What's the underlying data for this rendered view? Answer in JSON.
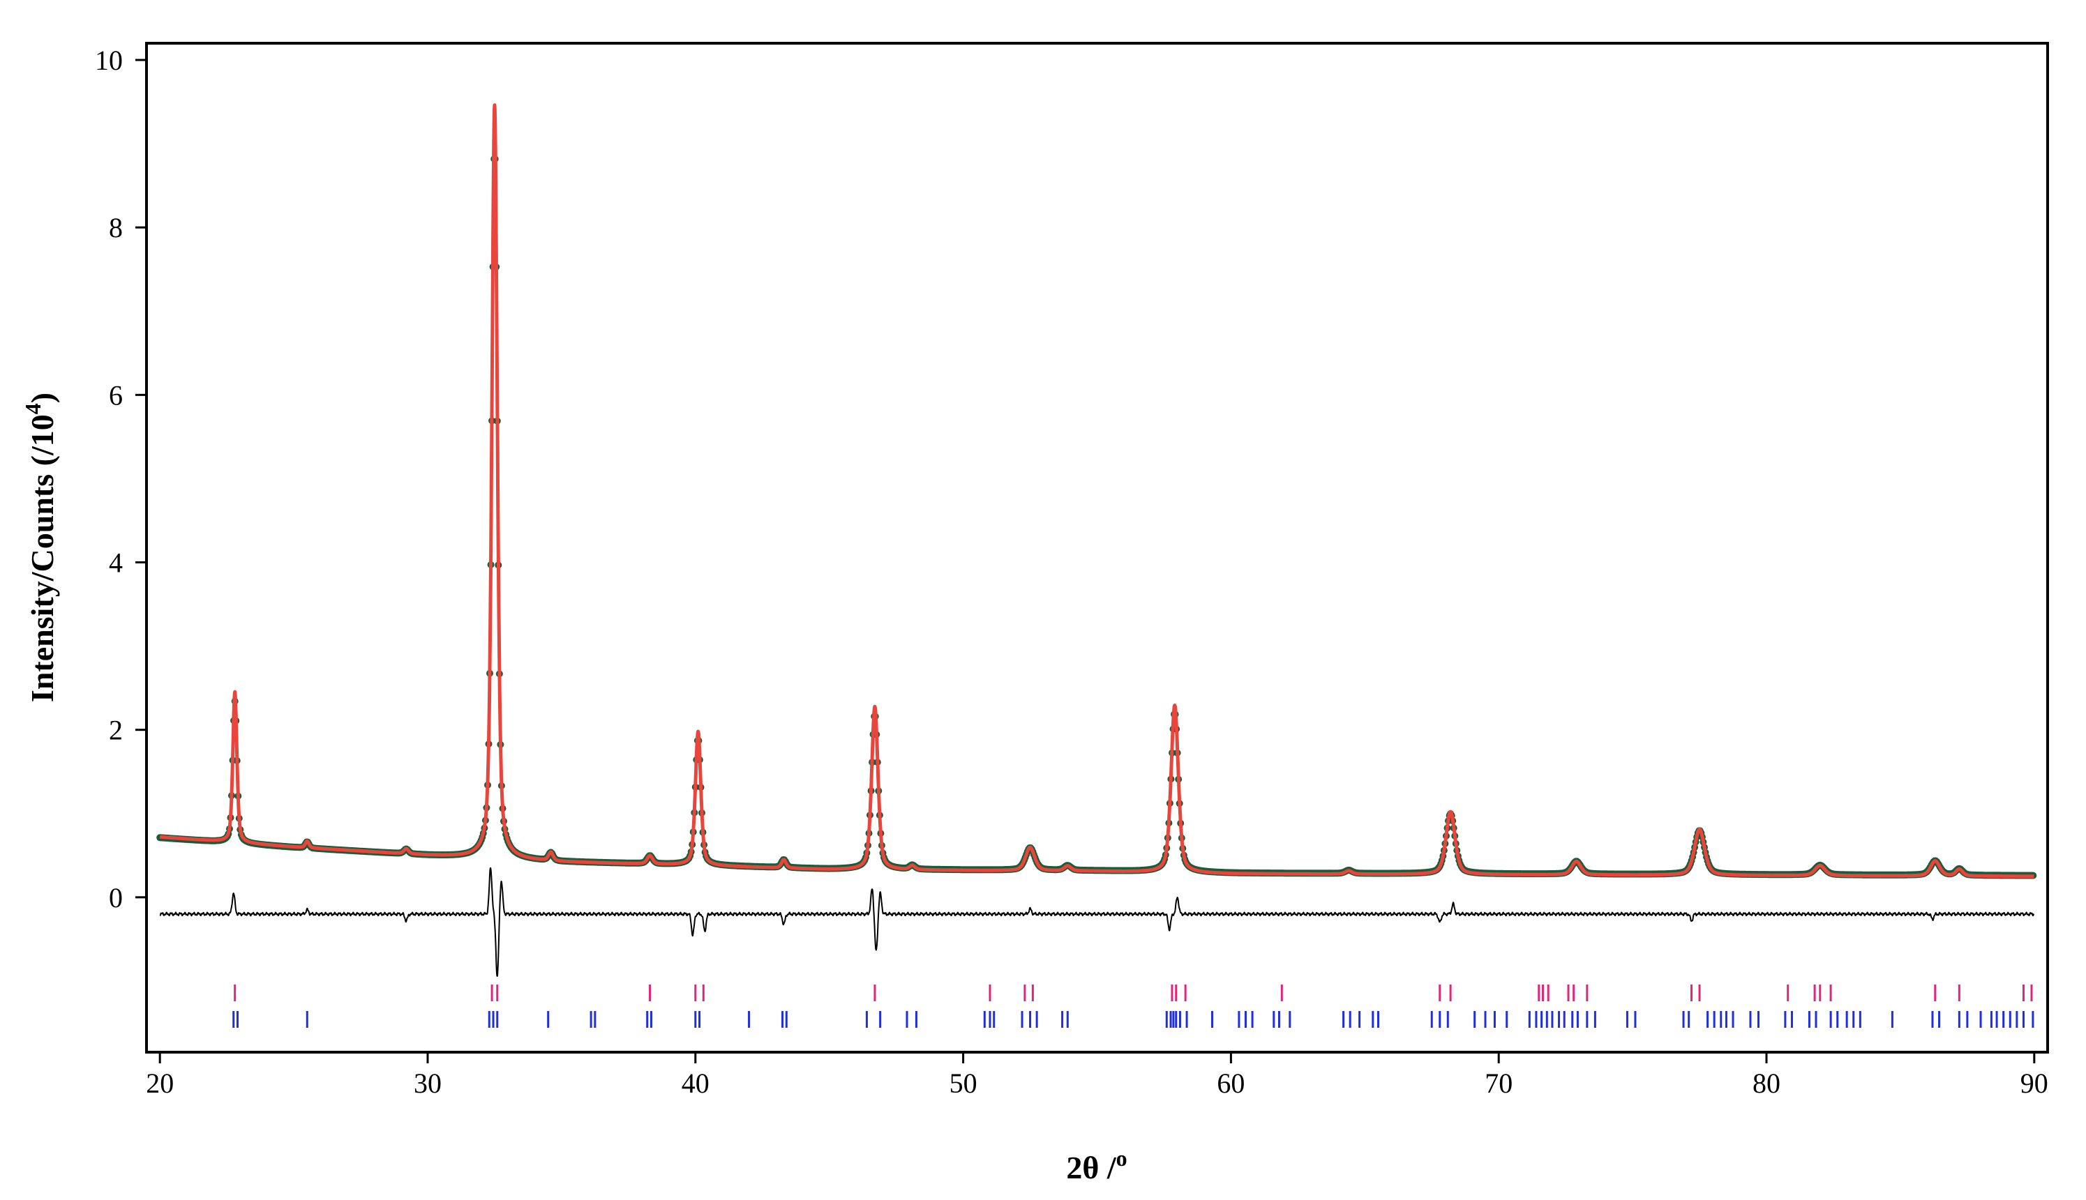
{
  "chart_data": {
    "type": "scatter",
    "title": "",
    "xlabel": "2θ /",
    "xlabel_sup": "o",
    "ylabel": "Intensity/Counts (/10",
    "ylabel_sup": "4",
    "ylabel_end": ")",
    "xlim": [
      19.5,
      90.5
    ],
    "ylim": [
      -1.85,
      10.2
    ],
    "xticks": [
      20,
      30,
      40,
      50,
      60,
      70,
      80,
      90
    ],
    "xtick_labels": [
      "20",
      "30",
      "40",
      "50",
      "60",
      "70",
      "80",
      "90"
    ],
    "yticks": [
      0,
      2,
      4,
      6,
      8,
      10
    ],
    "ytick_labels": [
      "0",
      "2",
      "4",
      "6",
      "8",
      "10"
    ],
    "grid": false,
    "legend": "none",
    "colors": {
      "observed": "#1a5c3a",
      "calculated": "#e8453c",
      "difference": "#000000",
      "phase1_ticks": "#e0267a",
      "phase2_ticks": "#1f2ee0"
    },
    "series": [
      {
        "role": "observed",
        "marker": "dot"
      },
      {
        "role": "calculated",
        "marker": "line"
      },
      {
        "role": "difference",
        "marker": "line"
      }
    ],
    "background": [
      [
        20,
        0.72
      ],
      [
        25,
        0.6
      ],
      [
        30,
        0.5
      ],
      [
        35,
        0.42
      ],
      [
        40,
        0.38
      ],
      [
        45,
        0.33
      ],
      [
        50,
        0.32
      ],
      [
        55,
        0.31
      ],
      [
        60,
        0.28
      ],
      [
        70,
        0.27
      ],
      [
        80,
        0.26
      ],
      [
        90,
        0.25
      ]
    ],
    "peaks": [
      {
        "pos": 22.8,
        "height": 1.8,
        "width": 0.09
      },
      {
        "pos": 25.5,
        "height": 0.08,
        "width": 0.08
      },
      {
        "pos": 29.2,
        "height": 0.06,
        "width": 0.1
      },
      {
        "pos": 32.5,
        "height": 9.0,
        "width": 0.12
      },
      {
        "pos": 34.6,
        "height": 0.1,
        "width": 0.1
      },
      {
        "pos": 38.3,
        "height": 0.1,
        "width": 0.12
      },
      {
        "pos": 40.1,
        "height": 1.6,
        "width": 0.12
      },
      {
        "pos": 43.3,
        "height": 0.1,
        "width": 0.1
      },
      {
        "pos": 46.7,
        "height": 1.95,
        "width": 0.14
      },
      {
        "pos": 48.1,
        "height": 0.05,
        "width": 0.12
      },
      {
        "pos": 52.5,
        "height": 0.28,
        "width": 0.2
      },
      {
        "pos": 53.9,
        "height": 0.06,
        "width": 0.15
      },
      {
        "pos": 57.9,
        "height": 2.0,
        "width": 0.16
      },
      {
        "pos": 64.4,
        "height": 0.04,
        "width": 0.15
      },
      {
        "pos": 68.2,
        "height": 0.75,
        "width": 0.2
      },
      {
        "pos": 72.9,
        "height": 0.16,
        "width": 0.2
      },
      {
        "pos": 77.5,
        "height": 0.55,
        "width": 0.22
      },
      {
        "pos": 82.0,
        "height": 0.12,
        "width": 0.22
      },
      {
        "pos": 86.3,
        "height": 0.18,
        "width": 0.2
      },
      {
        "pos": 87.2,
        "height": 0.08,
        "width": 0.15
      }
    ],
    "difference_offset": -0.2,
    "difference_features": [
      {
        "pos": 22.75,
        "amp": 0.25
      },
      {
        "pos": 25.5,
        "amp": 0.05
      },
      {
        "pos": 29.2,
        "amp": -0.08
      },
      {
        "pos": 32.35,
        "amp": 0.55
      },
      {
        "pos": 32.6,
        "amp": -0.75
      },
      {
        "pos": 32.75,
        "amp": 0.4
      },
      {
        "pos": 39.9,
        "amp": -0.25
      },
      {
        "pos": 40.35,
        "amp": -0.2
      },
      {
        "pos": 43.3,
        "amp": -0.12
      },
      {
        "pos": 46.6,
        "amp": 0.3
      },
      {
        "pos": 46.75,
        "amp": -0.45
      },
      {
        "pos": 46.9,
        "amp": 0.25
      },
      {
        "pos": 52.5,
        "amp": 0.06
      },
      {
        "pos": 57.7,
        "amp": -0.18
      },
      {
        "pos": 58.0,
        "amp": 0.2
      },
      {
        "pos": 67.8,
        "amp": -0.1
      },
      {
        "pos": 68.3,
        "amp": 0.12
      },
      {
        "pos": 77.2,
        "amp": -0.08
      },
      {
        "pos": 86.2,
        "amp": -0.06
      }
    ],
    "phase1_ticks": [
      22.8,
      32.4,
      32.6,
      38.3,
      40.0,
      40.3,
      46.7,
      51.0,
      52.3,
      52.6,
      57.8,
      57.95,
      58.3,
      61.9,
      67.8,
      68.2,
      71.5,
      71.65,
      71.85,
      72.6,
      72.8,
      73.3,
      77.2,
      77.5,
      80.8,
      81.8,
      82.0,
      82.4,
      86.3,
      87.2,
      89.6,
      89.9
    ],
    "phase2_ticks": [
      22.75,
      22.9,
      25.5,
      32.3,
      32.45,
      32.6,
      34.5,
      36.1,
      36.25,
      38.2,
      38.35,
      40.0,
      40.15,
      42.0,
      43.25,
      43.4,
      46.4,
      46.9,
      47.9,
      48.25,
      50.8,
      51.0,
      51.15,
      52.2,
      52.5,
      52.75,
      53.7,
      53.9,
      57.6,
      57.75,
      57.85,
      57.95,
      58.1,
      58.35,
      59.3,
      60.3,
      60.55,
      60.8,
      61.6,
      61.8,
      62.2,
      64.2,
      64.45,
      64.8,
      65.3,
      65.5,
      67.5,
      67.8,
      68.1,
      69.1,
      69.5,
      69.85,
      70.3,
      71.15,
      71.4,
      71.6,
      71.8,
      72.0,
      72.25,
      72.45,
      72.75,
      72.95,
      73.3,
      73.6,
      74.8,
      75.1,
      76.9,
      77.1,
      77.8,
      78.05,
      78.3,
      78.5,
      78.75,
      79.4,
      79.7,
      80.7,
      80.95,
      81.6,
      81.85,
      82.4,
      82.65,
      83.0,
      83.25,
      83.5,
      84.7,
      86.2,
      86.45,
      87.2,
      87.5,
      88.0,
      88.4,
      88.6,
      88.85,
      89.1,
      89.35,
      89.6,
      89.95
    ]
  }
}
